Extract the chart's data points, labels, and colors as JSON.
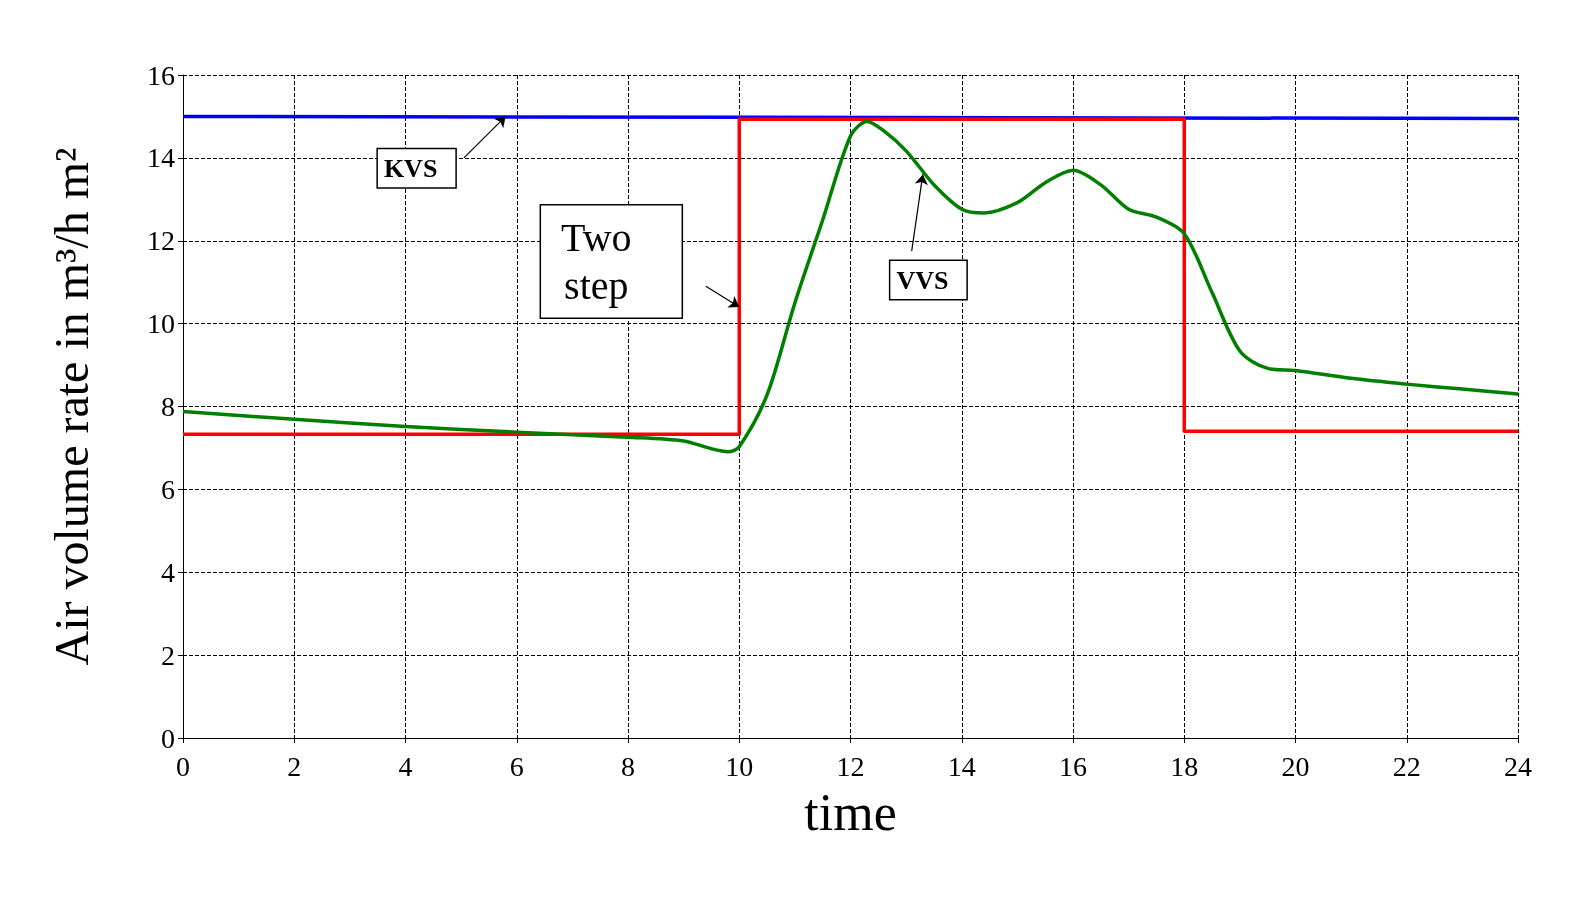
{
  "chart_data": {
    "type": "line",
    "xlabel": "time",
    "ylabel": "Air volume rate in m³/h m²",
    "xlim": [
      0,
      24
    ],
    "xticks": [
      0,
      2,
      4,
      6,
      8,
      10,
      12,
      14,
      16,
      18,
      20,
      22,
      24
    ],
    "ylim": [
      0,
      16
    ],
    "yticks": [
      0,
      2,
      4,
      6,
      8,
      10,
      12,
      14,
      16
    ],
    "grid": true,
    "marker": "none",
    "line_style": "solid",
    "series": [
      {
        "color": "#0000ff",
        "x": [
          0,
          24
        ],
        "values": [
          15.0,
          14.95
        ]
      },
      {
        "type": "step",
        "color": "#ff0000",
        "x": [
          0,
          10,
          18,
          24
        ],
        "values": [
          7.33,
          14.93,
          7.4,
          7.4
        ]
      },
      {
        "color": "#007f00",
        "x": [
          0,
          2,
          4,
          6,
          8,
          9,
          9.5,
          9.8,
          10,
          10.5,
          11,
          11.5,
          12,
          12.3,
          12.6,
          13,
          13.5,
          14,
          14.4,
          15,
          15.5,
          16,
          16.5,
          17,
          17.5,
          18,
          18.5,
          19,
          19.5,
          20,
          21,
          22,
          23,
          24
        ],
        "values": [
          7.88,
          7.69,
          7.52,
          7.38,
          7.26,
          7.17,
          6.98,
          6.91,
          7.03,
          8.28,
          10.5,
          12.5,
          14.53,
          14.88,
          14.65,
          14.17,
          13.35,
          12.76,
          12.67,
          12.92,
          13.4,
          13.7,
          13.35,
          12.76,
          12.57,
          12.17,
          10.75,
          9.34,
          8.92,
          8.87,
          8.68,
          8.54,
          8.42,
          8.3
        ]
      }
    ],
    "annotations": [
      {
        "text": "KVS",
        "x": 5.8,
        "y": 15.0
      },
      {
        "text": "Two step",
        "x": 10,
        "y": 10.4
      },
      {
        "text": "VVS",
        "x": 13.3,
        "y": 13.6
      }
    ]
  }
}
